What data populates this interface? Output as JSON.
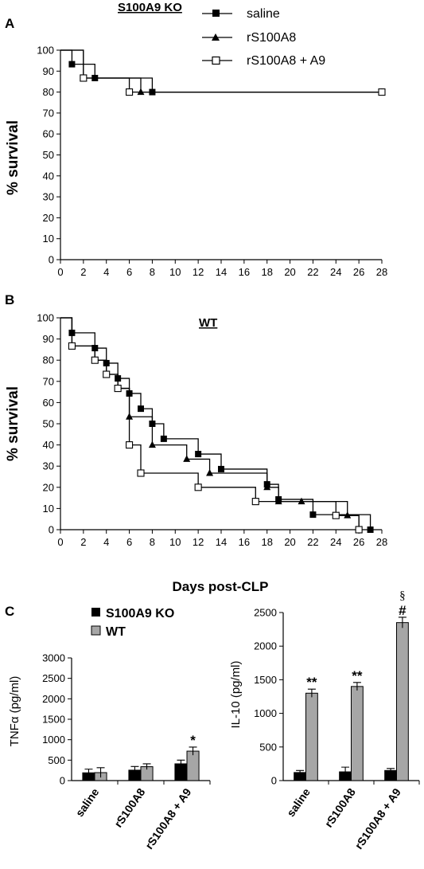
{
  "panels": {
    "A": {
      "label": "A",
      "title": "S100A9 KO"
    },
    "B": {
      "label": "B",
      "title": "WT",
      "xlabel": "Days post-CLP"
    },
    "C": {
      "label": "C"
    }
  },
  "legend_survival": [
    "saline",
    "rS100A8",
    "rS100A8 + A9"
  ],
  "legend_bars": [
    "S100A9 KO",
    "WT"
  ],
  "colors": {
    "ko": "#000000",
    "wt": "#a6a6a6",
    "line": "#000000"
  },
  "chart_data": [
    {
      "id": "A",
      "type": "line",
      "step": true,
      "title": "S100A9 KO",
      "xlabel": "",
      "ylabel": "% survival",
      "xlim": [
        0,
        28
      ],
      "ylim": [
        0,
        100
      ],
      "xticks": [
        0,
        2,
        4,
        6,
        8,
        10,
        12,
        14,
        16,
        18,
        20,
        22,
        24,
        26,
        28
      ],
      "yticks": [
        0,
        10,
        20,
        30,
        40,
        50,
        60,
        70,
        80,
        90,
        100
      ],
      "grid": false,
      "legend_position": "top-right",
      "series": [
        {
          "name": "saline",
          "marker": "filled-square",
          "points": [
            [
              0,
              100
            ],
            [
              1,
              93.3
            ],
            [
              3,
              86.7
            ],
            [
              8,
              80
            ],
            [
              28,
              80
            ]
          ]
        },
        {
          "name": "rS100A8",
          "marker": "filled-triangle",
          "points": [
            [
              0,
              100
            ],
            [
              2,
              86.7
            ],
            [
              7,
              80
            ],
            [
              28,
              80
            ]
          ]
        },
        {
          "name": "rS100A8 + A9",
          "marker": "open-square",
          "points": [
            [
              0,
              100
            ],
            [
              2,
              86.7
            ],
            [
              6,
              80
            ],
            [
              28,
              80
            ]
          ]
        }
      ]
    },
    {
      "id": "B",
      "type": "line",
      "step": true,
      "title": "WT",
      "xlabel": "Days post-CLP",
      "ylabel": "% survival",
      "xlim": [
        0,
        28
      ],
      "ylim": [
        0,
        100
      ],
      "xticks": [
        0,
        2,
        4,
        6,
        8,
        10,
        12,
        14,
        16,
        18,
        20,
        22,
        24,
        26,
        28
      ],
      "yticks": [
        0,
        10,
        20,
        30,
        40,
        50,
        60,
        70,
        80,
        90,
        100
      ],
      "grid": false,
      "series": [
        {
          "name": "saline",
          "marker": "filled-square",
          "points": [
            [
              0,
              100
            ],
            [
              1,
              92.9
            ],
            [
              3,
              85.7
            ],
            [
              4,
              78.6
            ],
            [
              5,
              71.4
            ],
            [
              6,
              64.3
            ],
            [
              7,
              57.1
            ],
            [
              8,
              50
            ],
            [
              9,
              42.9
            ],
            [
              12,
              35.7
            ],
            [
              14,
              28.6
            ],
            [
              18,
              21.4
            ],
            [
              19,
              14.3
            ],
            [
              22,
              7.1
            ],
            [
              27,
              0
            ]
          ]
        },
        {
          "name": "rS100A8",
          "marker": "filled-triangle",
          "points": [
            [
              0,
              100
            ],
            [
              1,
              86.7
            ],
            [
              3,
              80
            ],
            [
              4,
              73.3
            ],
            [
              5,
              66.7
            ],
            [
              6,
              53.3
            ],
            [
              8,
              40
            ],
            [
              11,
              33.3
            ],
            [
              13,
              26.7
            ],
            [
              18,
              20
            ],
            [
              19,
              13.3
            ],
            [
              21,
              13.3
            ],
            [
              25,
              6.7
            ],
            [
              26,
              0
            ]
          ]
        },
        {
          "name": "rS100A8 + A9",
          "marker": "open-square",
          "points": [
            [
              0,
              100
            ],
            [
              1,
              86.7
            ],
            [
              3,
              80
            ],
            [
              4,
              73.3
            ],
            [
              5,
              66.7
            ],
            [
              6,
              40
            ],
            [
              7,
              26.7
            ],
            [
              12,
              20
            ],
            [
              17,
              13.3
            ],
            [
              24,
              6.7
            ],
            [
              26,
              0
            ]
          ]
        }
      ]
    },
    {
      "id": "C-TNF",
      "type": "bar",
      "categories": [
        "saline",
        "rS100A8",
        "rS100A8 + A9"
      ],
      "ylabel": "TNFα (pg/ml)",
      "ylim": [
        0,
        3000
      ],
      "yticks": [
        0,
        500,
        1000,
        1500,
        2000,
        2500,
        3000
      ],
      "series": [
        {
          "name": "S100A9 KO",
          "values": [
            190,
            255,
            410
          ],
          "errors": [
            90,
            90,
            90
          ]
        },
        {
          "name": "WT",
          "values": [
            195,
            340,
            720
          ],
          "errors": [
            120,
            70,
            100
          ]
        }
      ],
      "annotations": [
        {
          "category": "rS100A8 + A9",
          "series": "WT",
          "text": "*"
        }
      ]
    },
    {
      "id": "C-IL10",
      "type": "bar",
      "categories": [
        "saline",
        "rS100A8",
        "rS100A8 + A9"
      ],
      "ylabel": "IL-10 (pg/ml)",
      "ylim": [
        0,
        2500
      ],
      "yticks": [
        0,
        500,
        1000,
        1500,
        2000,
        2500
      ],
      "series": [
        {
          "name": "S100A9 KO",
          "values": [
            120,
            130,
            150
          ],
          "errors": [
            30,
            70,
            30
          ]
        },
        {
          "name": "WT",
          "values": [
            1300,
            1400,
            2350
          ],
          "errors": [
            60,
            60,
            80
          ]
        }
      ],
      "annotations": [
        {
          "category": "saline",
          "series": "WT",
          "text": "**"
        },
        {
          "category": "rS100A8",
          "series": "WT",
          "text": "**"
        },
        {
          "category": "rS100A8 + A9",
          "series": "WT",
          "text": "#"
        },
        {
          "category": "rS100A8 + A9",
          "series": "WT",
          "text": "§"
        }
      ]
    }
  ]
}
